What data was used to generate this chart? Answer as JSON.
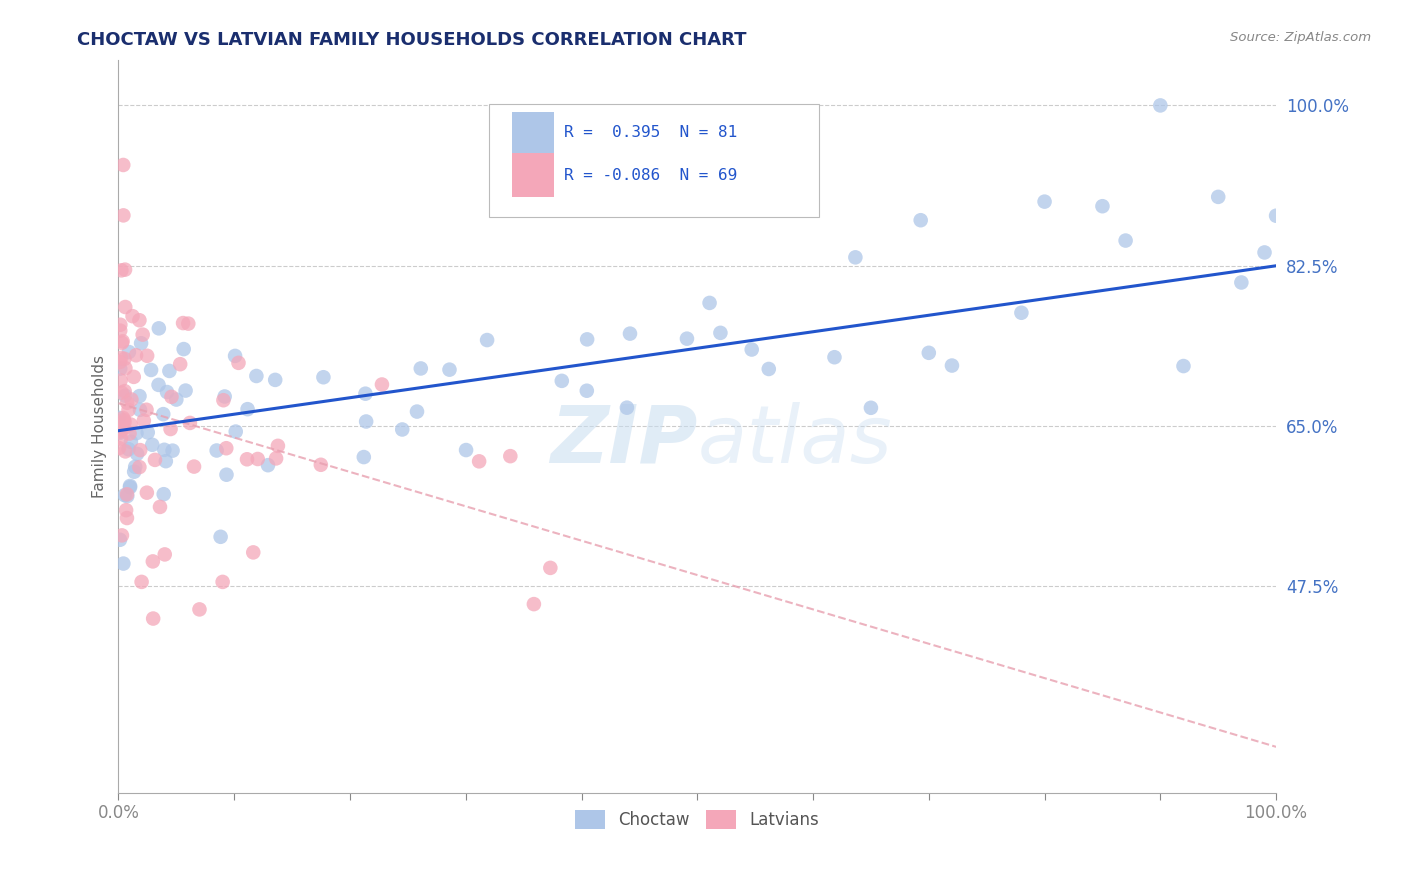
{
  "title": "CHOCTAW VS LATVIAN FAMILY HOUSEHOLDS CORRELATION CHART",
  "source": "Source: ZipAtlas.com",
  "ylabel": "Family Households",
  "xlim": [
    0.0,
    1.0
  ],
  "ylim": [
    0.25,
    1.05
  ],
  "ytick_labels": [
    "100.0%",
    "82.5%",
    "65.0%",
    "47.5%"
  ],
  "ytick_positions": [
    1.0,
    0.825,
    0.65,
    0.475
  ],
  "choctaw_color": "#aec6e8",
  "latvian_color": "#f4a7b9",
  "choctaw_line_color": "#2255cc",
  "latvian_line_color": "#e8a0b0",
  "legend_r_choctaw": "R =  0.395",
  "legend_n_choctaw": "N = 81",
  "legend_r_latvian": "R = -0.086",
  "legend_n_latvian": "N = 69",
  "watermark_zip": "ZIP",
  "watermark_atlas": "atlas",
  "choctaw_trendline_x": [
    0.0,
    1.0
  ],
  "choctaw_trendline_y": [
    0.645,
    0.825
  ],
  "latvian_trendline_x": [
    0.0,
    1.0
  ],
  "latvian_trendline_y": [
    0.675,
    0.3
  ]
}
